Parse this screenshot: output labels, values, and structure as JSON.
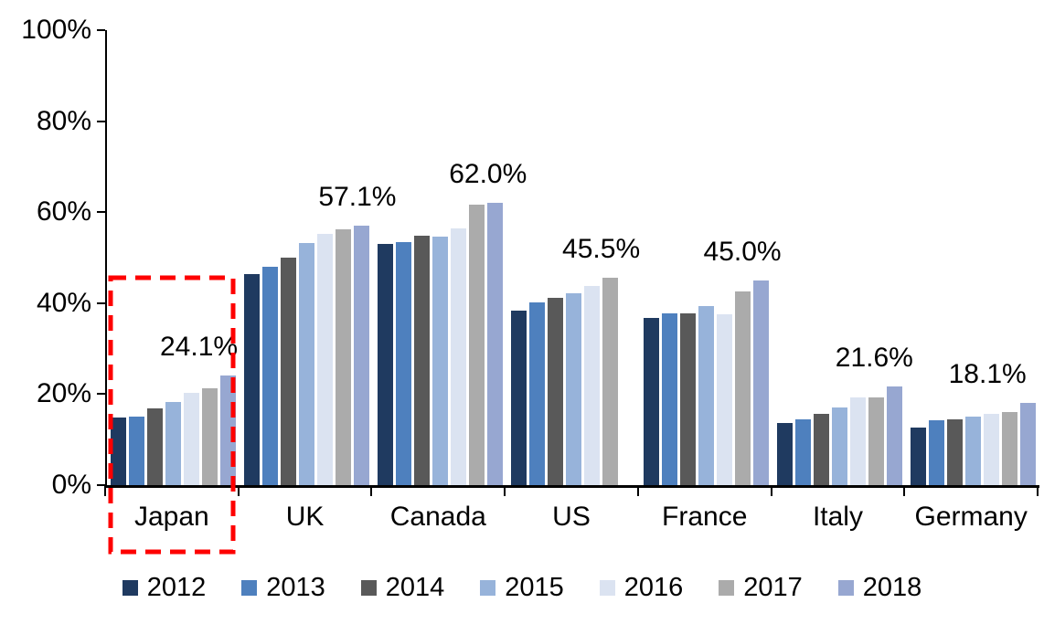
{
  "chart_data": {
    "type": "bar",
    "title": "",
    "xlabel": "",
    "ylabel": "",
    "ylim": [
      0,
      100
    ],
    "ytick_labels": [
      "100%",
      "80%",
      "60%",
      "40%",
      "20%",
      "0%"
    ],
    "ytick_values": [
      100,
      80,
      60,
      40,
      20,
      0
    ],
    "grid": false,
    "legend_position": "bottom",
    "categories": [
      "Japan",
      "UK",
      "Canada",
      "US",
      "France",
      "Italy",
      "Germany"
    ],
    "series": [
      {
        "name": "2012",
        "color": "#1F3A60",
        "values": [
          14.9,
          46.3,
          53.0,
          38.3,
          36.7,
          13.6,
          12.6
        ]
      },
      {
        "name": "2013",
        "color": "#4E80BE",
        "values": [
          15.0,
          48.0,
          53.5,
          40.1,
          37.8,
          14.5,
          14.2
        ]
      },
      {
        "name": "2014",
        "color": "#595959",
        "values": [
          16.9,
          50.0,
          54.9,
          41.1,
          37.8,
          15.6,
          14.4
        ]
      },
      {
        "name": "2015",
        "color": "#97B3DA",
        "values": [
          18.3,
          53.3,
          54.6,
          42.2,
          39.4,
          17.1,
          15.1
        ]
      },
      {
        "name": "2016",
        "color": "#DBE3F1",
        "values": [
          20.3,
          55.2,
          56.4,
          43.8,
          37.5,
          19.2,
          15.6
        ]
      },
      {
        "name": "2017",
        "color": "#ABABAB",
        "values": [
          21.3,
          56.3,
          61.7,
          45.5,
          42.5,
          19.3,
          16.1
        ]
      },
      {
        "name": "2018",
        "color": "#97A7D1",
        "values": [
          24.1,
          57.1,
          62.0,
          null,
          45.0,
          21.6,
          18.1
        ]
      }
    ],
    "data_labels": [
      "24.1%",
      "57.1%",
      "62.0%",
      "45.5%",
      "45.0%",
      "21.6%",
      "18.1%"
    ],
    "annotation": {
      "type": "dashed-rectangle",
      "target_category": "Japan",
      "color": "#FE0000"
    }
  }
}
